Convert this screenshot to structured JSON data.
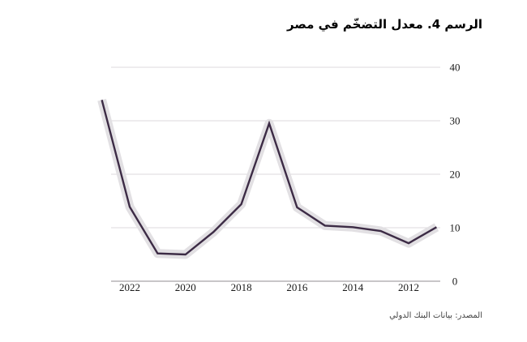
{
  "title": "الرسم 4. معدل التضخّم في مصر",
  "source_note": "المصدر: بيانات البنك الدولي",
  "chart_data": {
    "type": "line",
    "title": "الرسم 4. معدل التضخّم في مصر",
    "x": [
      2023,
      2022,
      2021,
      2020,
      2019,
      2018,
      2017,
      2016,
      2015,
      2014,
      2013,
      2012,
      2011
    ],
    "values": [
      33.9,
      13.9,
      5.2,
      5.0,
      9.2,
      14.4,
      29.5,
      13.8,
      10.4,
      10.1,
      9.4,
      7.1,
      10.1
    ],
    "x_ticks": [
      "2022",
      "2020",
      "2018",
      "2016",
      "2014",
      "2012"
    ],
    "y_ticks": [
      0,
      10,
      20,
      30,
      40
    ],
    "ylim": [
      0,
      40
    ],
    "x_axis_reversed": true,
    "y_axis_side": "right",
    "grid": "horizontal",
    "legend": "none",
    "line_color": "#3c2b45",
    "band_color": "#e2e0e3"
  }
}
